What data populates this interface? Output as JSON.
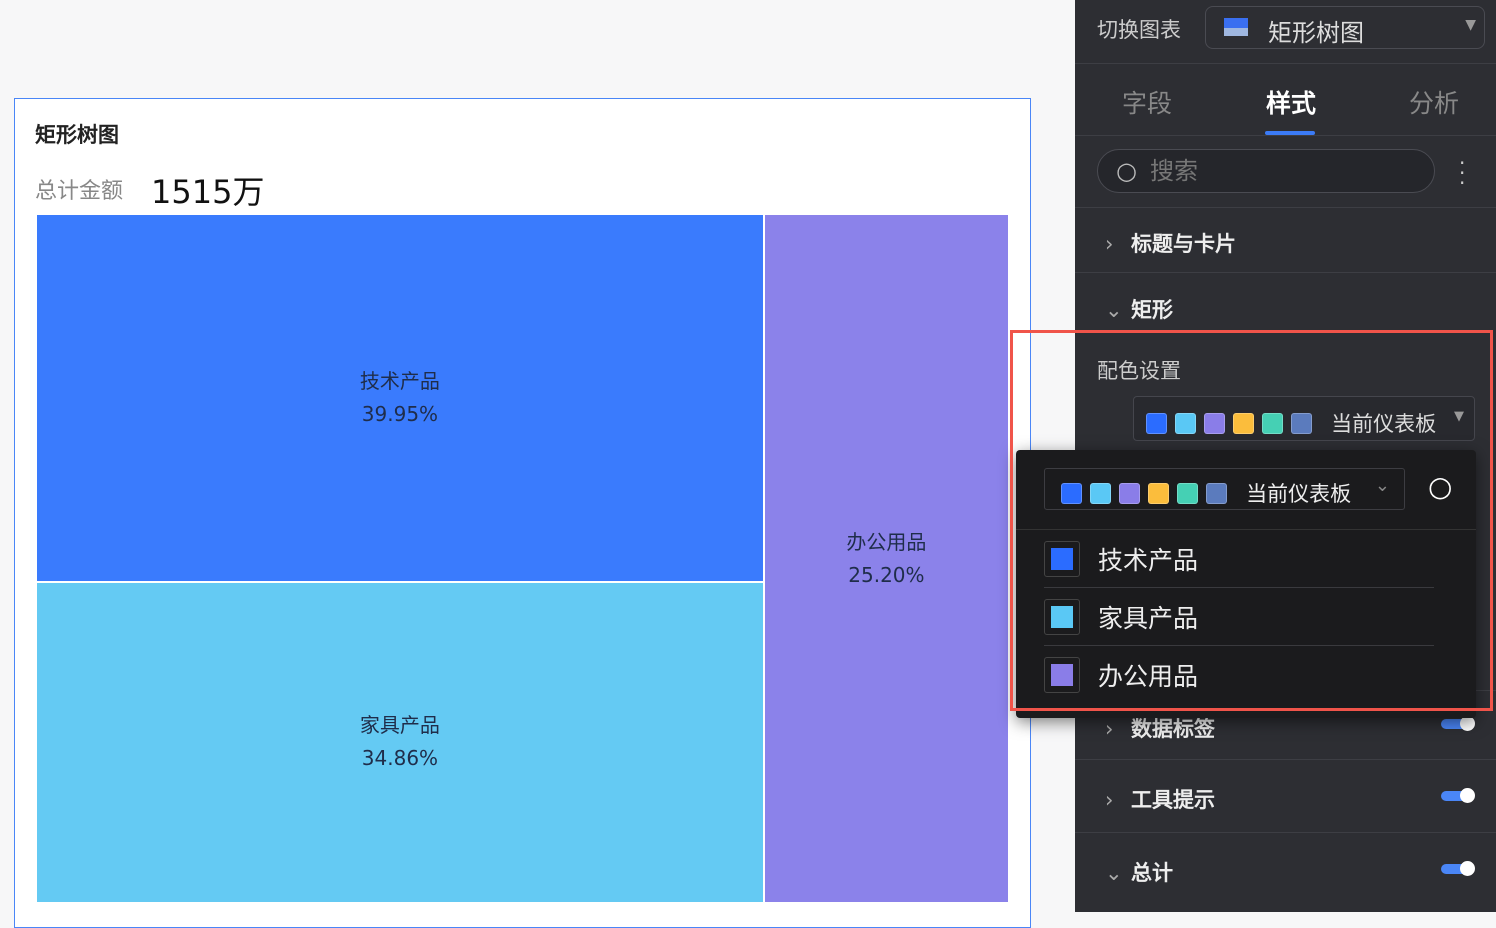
{
  "card": {
    "title": "矩形树图",
    "total_label": "总计金额",
    "total_value": "1515万"
  },
  "chart_data": {
    "type": "treemap",
    "items": [
      {
        "name": "技术产品",
        "percent": 39.95,
        "label": "39.95%",
        "color": "#3a7bfd"
      },
      {
        "name": "家具产品",
        "percent": 34.86,
        "label": "34.86%",
        "color": "#64caf3"
      },
      {
        "name": "办公用品",
        "percent": 25.2,
        "label": "25.20%",
        "color": "#8b82ea"
      }
    ]
  },
  "panel": {
    "switch_label": "切换图表",
    "chart_type": "矩形树图",
    "tabs": [
      "字段",
      "样式",
      "分析"
    ],
    "active_tab": "样式",
    "search_placeholder": "搜索",
    "sections": {
      "title_card": "标题与卡片",
      "rect": "矩形",
      "data_label": "数据标签",
      "tooltip": "工具提示",
      "total": "总计"
    },
    "color_setting": "配色设置",
    "palette_name": "当前仪表板",
    "palette": [
      "#2b6cff",
      "#5ac8f5",
      "#8a7de8",
      "#fbbd3c",
      "#45d0b4",
      "#5b7bbd"
    ]
  },
  "dropdown": {
    "palette_name": "当前仪表板",
    "items": [
      {
        "name": "技术产品",
        "color": "#2b6cff"
      },
      {
        "name": "家具产品",
        "color": "#5ac8f5"
      },
      {
        "name": "办公用品",
        "color": "#8a7de8"
      }
    ]
  }
}
